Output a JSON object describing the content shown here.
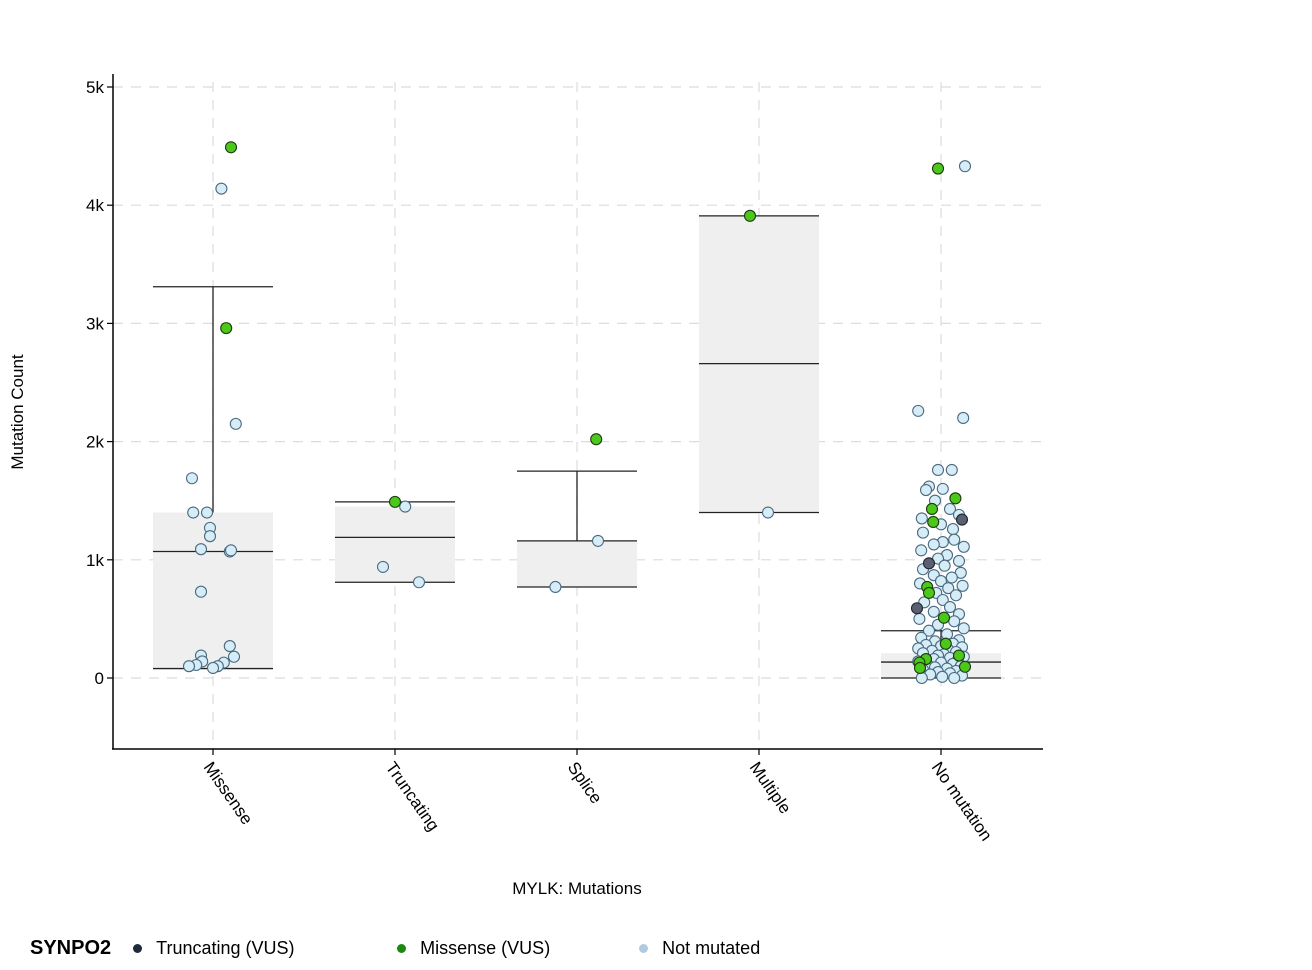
{
  "chart_data": {
    "type": "box-scatter",
    "title": "",
    "xlabel": "MYLK: Mutations",
    "ylabel": "Mutation Count",
    "ylim": [
      -600,
      5100
    ],
    "yticks": [
      0,
      1000,
      2000,
      3000,
      4000,
      5000
    ],
    "ytick_labels": [
      "0",
      "1k",
      "2k",
      "3k",
      "4k",
      "5k"
    ],
    "grid": true,
    "categories": [
      "Missense",
      "Truncating",
      "Splice",
      "Multiple",
      "No mutation"
    ],
    "boxes": [
      {
        "category": "Missense",
        "q1": 80,
        "median": 1070,
        "q3": 1400,
        "whisker_low": 80,
        "whisker_high": 3310
      },
      {
        "category": "Truncating",
        "q1": 810,
        "median": 1190,
        "q3": 1450,
        "whisker_low": 810,
        "whisker_high": 1490
      },
      {
        "category": "Splice",
        "q1": 770,
        "median": 1160,
        "q3": 1160,
        "whisker_low": 770,
        "whisker_high": 1750
      },
      {
        "category": "Multiple",
        "q1": 1400,
        "median": 2660,
        "q3": 3910,
        "whisker_low": 1400,
        "whisker_high": 3910
      },
      {
        "category": "No mutation",
        "q1": 0,
        "median": 135,
        "q3": 210,
        "whisker_low": 0,
        "whisker_high": 400
      }
    ],
    "series": [
      {
        "name": "Truncating (VUS)",
        "color": "#5a6070",
        "legend_color": "#1f2a3a",
        "points": [
          {
            "category": "No mutation",
            "y": 1340,
            "jitter": 0.35
          },
          {
            "category": "No mutation",
            "y": 970,
            "jitter": -0.2
          },
          {
            "category": "No mutation",
            "y": 590,
            "jitter": -0.4
          }
        ]
      },
      {
        "name": "Missense (VUS)",
        "color": "#4cc81a",
        "legend_color": "#1a8a10",
        "points": [
          {
            "category": "Missense",
            "y": 4490,
            "jitter": 0.3
          },
          {
            "category": "Missense",
            "y": 2960,
            "jitter": 0.22
          },
          {
            "category": "Truncating",
            "y": 1490,
            "jitter": 0.0
          },
          {
            "category": "Splice",
            "y": 2020,
            "jitter": 0.32
          },
          {
            "category": "Multiple",
            "y": 3910,
            "jitter": -0.15
          },
          {
            "category": "No mutation",
            "y": 4310,
            "jitter": -0.05
          },
          {
            "category": "No mutation",
            "y": 1520,
            "jitter": 0.24
          },
          {
            "category": "No mutation",
            "y": 1430,
            "jitter": -0.15
          },
          {
            "category": "No mutation",
            "y": 1320,
            "jitter": -0.13
          },
          {
            "category": "No mutation",
            "y": 770,
            "jitter": -0.23
          },
          {
            "category": "No mutation",
            "y": 720,
            "jitter": -0.2
          },
          {
            "category": "No mutation",
            "y": 510,
            "jitter": 0.05
          },
          {
            "category": "No mutation",
            "y": 290,
            "jitter": 0.08
          },
          {
            "category": "No mutation",
            "y": 190,
            "jitter": 0.3
          },
          {
            "category": "No mutation",
            "y": 160,
            "jitter": -0.25
          },
          {
            "category": "No mutation",
            "y": 130,
            "jitter": -0.36
          },
          {
            "category": "No mutation",
            "y": 95,
            "jitter": 0.4
          },
          {
            "category": "No mutation",
            "y": 85,
            "jitter": -0.35
          }
        ]
      },
      {
        "name": "Not mutated",
        "color": "#d6edf8",
        "legend_color": "#b0cbe0",
        "points": [
          {
            "category": "Missense",
            "y": 4140,
            "jitter": 0.14
          },
          {
            "category": "Missense",
            "y": 2150,
            "jitter": 0.38
          },
          {
            "category": "Missense",
            "y": 1690,
            "jitter": -0.35
          },
          {
            "category": "Missense",
            "y": 1400,
            "jitter": -0.33
          },
          {
            "category": "Missense",
            "y": 1400,
            "jitter": -0.1
          },
          {
            "category": "Missense",
            "y": 1270,
            "jitter": -0.05
          },
          {
            "category": "Missense",
            "y": 1200,
            "jitter": -0.05
          },
          {
            "category": "Missense",
            "y": 1090,
            "jitter": -0.2
          },
          {
            "category": "Missense",
            "y": 1070,
            "jitter": 0.28
          },
          {
            "category": "Missense",
            "y": 1080,
            "jitter": 0.3
          },
          {
            "category": "Missense",
            "y": 730,
            "jitter": -0.2
          },
          {
            "category": "Missense",
            "y": 270,
            "jitter": 0.28
          },
          {
            "category": "Missense",
            "y": 190,
            "jitter": -0.2
          },
          {
            "category": "Missense",
            "y": 180,
            "jitter": 0.35
          },
          {
            "category": "Missense",
            "y": 140,
            "jitter": -0.18
          },
          {
            "category": "Missense",
            "y": 130,
            "jitter": 0.18
          },
          {
            "category": "Missense",
            "y": 110,
            "jitter": -0.28
          },
          {
            "category": "Missense",
            "y": 100,
            "jitter": -0.4
          },
          {
            "category": "Missense",
            "y": 100,
            "jitter": 0.08
          },
          {
            "category": "Missense",
            "y": 85,
            "jitter": 0.0
          },
          {
            "category": "Truncating",
            "y": 1450,
            "jitter": 0.17
          },
          {
            "category": "Truncating",
            "y": 940,
            "jitter": -0.2
          },
          {
            "category": "Truncating",
            "y": 810,
            "jitter": 0.4
          },
          {
            "category": "Splice",
            "y": 1160,
            "jitter": 0.35
          },
          {
            "category": "Splice",
            "y": 770,
            "jitter": -0.36
          },
          {
            "category": "Multiple",
            "y": 1400,
            "jitter": 0.15
          },
          {
            "category": "No mutation",
            "y": 4330,
            "jitter": 0.4
          },
          {
            "category": "No mutation",
            "y": 2260,
            "jitter": -0.38
          },
          {
            "category": "No mutation",
            "y": 2200,
            "jitter": 0.37
          },
          {
            "category": "No mutation",
            "y": 1760,
            "jitter": -0.05
          },
          {
            "category": "No mutation",
            "y": 1760,
            "jitter": 0.18
          },
          {
            "category": "No mutation",
            "y": 1620,
            "jitter": -0.2
          },
          {
            "category": "No mutation",
            "y": 1590,
            "jitter": -0.25
          },
          {
            "category": "No mutation",
            "y": 1600,
            "jitter": 0.03
          },
          {
            "category": "No mutation",
            "y": 1500,
            "jitter": -0.1
          },
          {
            "category": "No mutation",
            "y": 1430,
            "jitter": 0.15
          },
          {
            "category": "No mutation",
            "y": 1380,
            "jitter": 0.3
          },
          {
            "category": "No mutation",
            "y": 1350,
            "jitter": -0.32
          },
          {
            "category": "No mutation",
            "y": 1300,
            "jitter": 0.0
          },
          {
            "category": "No mutation",
            "y": 1260,
            "jitter": 0.2
          },
          {
            "category": "No mutation",
            "y": 1230,
            "jitter": -0.3
          },
          {
            "category": "No mutation",
            "y": 1170,
            "jitter": 0.22
          },
          {
            "category": "No mutation",
            "y": 1150,
            "jitter": 0.03
          },
          {
            "category": "No mutation",
            "y": 1130,
            "jitter": -0.12
          },
          {
            "category": "No mutation",
            "y": 1110,
            "jitter": 0.38
          },
          {
            "category": "No mutation",
            "y": 1080,
            "jitter": -0.33
          },
          {
            "category": "No mutation",
            "y": 1040,
            "jitter": 0.1
          },
          {
            "category": "No mutation",
            "y": 1010,
            "jitter": -0.05
          },
          {
            "category": "No mutation",
            "y": 990,
            "jitter": 0.3
          },
          {
            "category": "No mutation",
            "y": 950,
            "jitter": 0.06
          },
          {
            "category": "No mutation",
            "y": 920,
            "jitter": -0.3
          },
          {
            "category": "No mutation",
            "y": 890,
            "jitter": 0.33
          },
          {
            "category": "No mutation",
            "y": 870,
            "jitter": -0.12
          },
          {
            "category": "No mutation",
            "y": 850,
            "jitter": 0.18
          },
          {
            "category": "No mutation",
            "y": 820,
            "jitter": 0.0
          },
          {
            "category": "No mutation",
            "y": 800,
            "jitter": -0.35
          },
          {
            "category": "No mutation",
            "y": 780,
            "jitter": 0.36
          },
          {
            "category": "No mutation",
            "y": 760,
            "jitter": 0.12
          },
          {
            "category": "No mutation",
            "y": 720,
            "jitter": -0.08
          },
          {
            "category": "No mutation",
            "y": 700,
            "jitter": 0.25
          },
          {
            "category": "No mutation",
            "y": 660,
            "jitter": 0.03
          },
          {
            "category": "No mutation",
            "y": 640,
            "jitter": -0.28
          },
          {
            "category": "No mutation",
            "y": 600,
            "jitter": 0.15
          },
          {
            "category": "No mutation",
            "y": 560,
            "jitter": -0.12
          },
          {
            "category": "No mutation",
            "y": 540,
            "jitter": 0.3
          },
          {
            "category": "No mutation",
            "y": 500,
            "jitter": -0.36
          },
          {
            "category": "No mutation",
            "y": 480,
            "jitter": 0.22
          },
          {
            "category": "No mutation",
            "y": 450,
            "jitter": -0.05
          },
          {
            "category": "No mutation",
            "y": 420,
            "jitter": 0.38
          },
          {
            "category": "No mutation",
            "y": 400,
            "jitter": -0.2
          },
          {
            "category": "No mutation",
            "y": 370,
            "jitter": 0.1
          },
          {
            "category": "No mutation",
            "y": 340,
            "jitter": -0.33
          },
          {
            "category": "No mutation",
            "y": 320,
            "jitter": 0.3
          },
          {
            "category": "No mutation",
            "y": 310,
            "jitter": -0.1
          },
          {
            "category": "No mutation",
            "y": 290,
            "jitter": 0.2
          },
          {
            "category": "No mutation",
            "y": 280,
            "jitter": -0.25
          },
          {
            "category": "No mutation",
            "y": 270,
            "jitter": 0.0
          },
          {
            "category": "No mutation",
            "y": 260,
            "jitter": 0.35
          },
          {
            "category": "No mutation",
            "y": 250,
            "jitter": -0.38
          },
          {
            "category": "No mutation",
            "y": 240,
            "jitter": 0.12
          },
          {
            "category": "No mutation",
            "y": 230,
            "jitter": -0.15
          },
          {
            "category": "No mutation",
            "y": 220,
            "jitter": 0.25
          },
          {
            "category": "No mutation",
            "y": 210,
            "jitter": -0.3
          },
          {
            "category": "No mutation",
            "y": 200,
            "jitter": 0.05
          },
          {
            "category": "No mutation",
            "y": 190,
            "jitter": -0.05
          },
          {
            "category": "No mutation",
            "y": 180,
            "jitter": 0.38
          },
          {
            "category": "No mutation",
            "y": 170,
            "jitter": 0.15
          },
          {
            "category": "No mutation",
            "y": 160,
            "jitter": -0.12
          },
          {
            "category": "No mutation",
            "y": 150,
            "jitter": 0.28
          },
          {
            "category": "No mutation",
            "y": 140,
            "jitter": -0.38
          },
          {
            "category": "No mutation",
            "y": 130,
            "jitter": 0.0
          },
          {
            "category": "No mutation",
            "y": 120,
            "jitter": 0.2
          },
          {
            "category": "No mutation",
            "y": 110,
            "jitter": -0.22
          },
          {
            "category": "No mutation",
            "y": 100,
            "jitter": 0.33
          },
          {
            "category": "No mutation",
            "y": 90,
            "jitter": -0.1
          },
          {
            "category": "No mutation",
            "y": 80,
            "jitter": 0.1
          },
          {
            "category": "No mutation",
            "y": 70,
            "jitter": -0.3
          },
          {
            "category": "No mutation",
            "y": 60,
            "jitter": 0.25
          },
          {
            "category": "No mutation",
            "y": 50,
            "jitter": -0.05
          },
          {
            "category": "No mutation",
            "y": 40,
            "jitter": 0.15
          },
          {
            "category": "No mutation",
            "y": 30,
            "jitter": -0.18
          },
          {
            "category": "No mutation",
            "y": 20,
            "jitter": 0.35
          },
          {
            "category": "No mutation",
            "y": 10,
            "jitter": 0.02
          },
          {
            "category": "No mutation",
            "y": 0,
            "jitter": -0.32
          },
          {
            "category": "No mutation",
            "y": 0,
            "jitter": 0.22
          }
        ]
      }
    ],
    "legend": {
      "title": "SYNPO2",
      "position": "bottom-left",
      "items": [
        "Truncating (VUS)",
        "Missense (VUS)",
        "Not mutated"
      ]
    }
  }
}
